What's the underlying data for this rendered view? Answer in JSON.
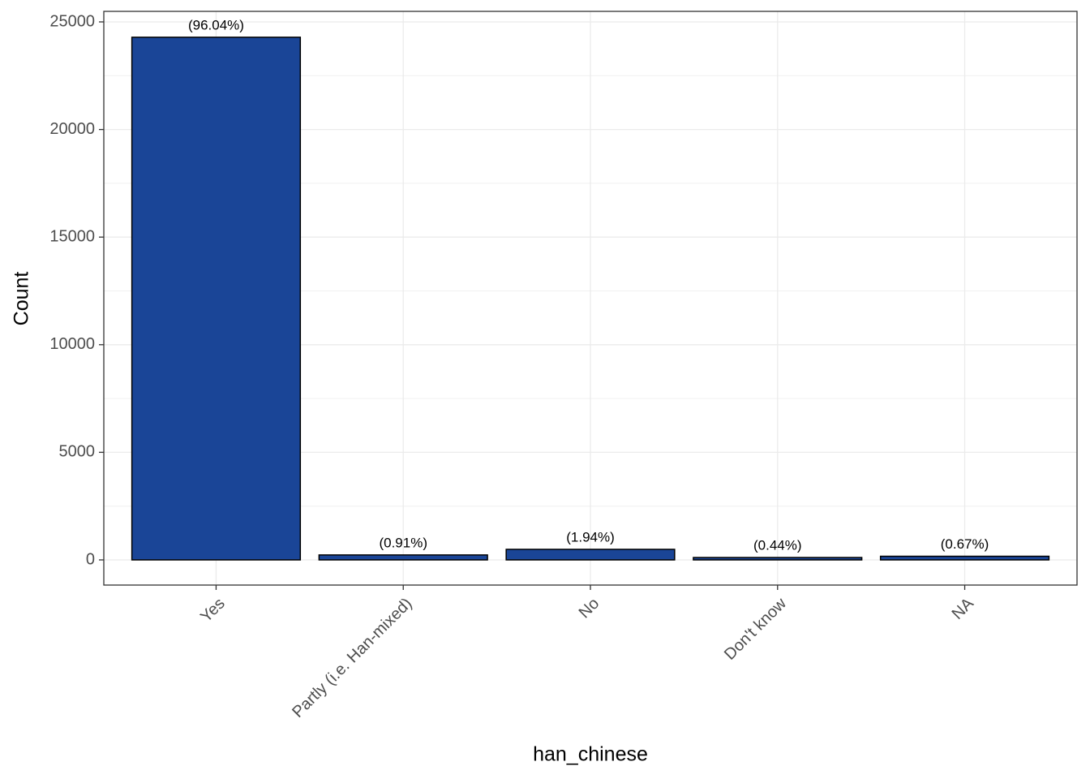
{
  "chart_data": {
    "type": "bar",
    "x_label": "han_chinese",
    "y_label": "Count",
    "categories": [
      "Yes",
      "Partly (i.e. Han-mixed)",
      "No",
      "Don't know",
      "NA"
    ],
    "values": [
      24287,
      230,
      491,
      111,
      169
    ],
    "bar_labels": [
      "(96.04%)",
      "(0.91%)",
      "(1.94%)",
      "(0.44%)",
      "(0.67%)"
    ],
    "color": "#1a4597",
    "ylim": [
      -1169,
      25490
    ],
    "yticks": [
      0,
      5000,
      10000,
      15000,
      20000,
      25000
    ],
    "grid": true
  }
}
